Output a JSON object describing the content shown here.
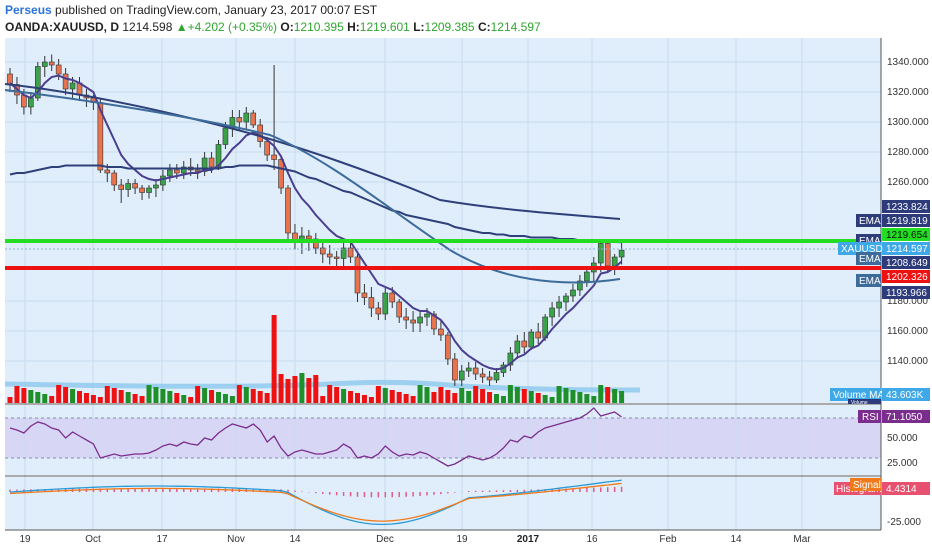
{
  "header": {
    "author": "Perseus",
    "published_text": "published on TradingView.com, January 23, 2017 00:07 EST",
    "symbol": "OANDA:XAUUSD, D",
    "last": "1214.598",
    "change": "▲+4.202 (+0.35%)",
    "o_label": "O:",
    "o_value": "1210.395",
    "h_label": "H:",
    "h_value": "1219.601",
    "l_label": "L:",
    "l_value": "1209.385",
    "c_label": "C:",
    "c_value": "1214.597"
  },
  "colors": {
    "up": "#3aa34a",
    "down": "#e8734f",
    "ema_short": "#4b3d8f",
    "ema_long": "#2f3f7a",
    "ema_mid": "#3d6b9a",
    "green_line": "#22dd22",
    "red_line": "#ee1111",
    "vol_up": "#1f8f2a",
    "vol_down": "#ee1111",
    "rsi_line": "#7b2d8e",
    "macd": "#2a9ad6",
    "signal": "#f07a1a",
    "hist": "#e05a8a"
  },
  "price_axis": {
    "ticks": [
      "1340.000",
      "1320.000",
      "1300.000",
      "1280.000",
      "1260.000",
      "1180.000",
      "1160.000",
      "1140.000"
    ]
  },
  "price_labels": [
    {
      "text": "1233.824",
      "style": "dark"
    },
    {
      "text": "1219.819",
      "style": "dark"
    },
    {
      "text": "1219.654",
      "style": "green"
    },
    {
      "text": "1214.597",
      "style": "sky"
    },
    {
      "text": "1208.649",
      "style": "dark"
    },
    {
      "text": "1202.326",
      "style": "red"
    },
    {
      "text": "1193.966",
      "style": "dark"
    }
  ],
  "tags": [
    {
      "text": "EMA",
      "style": "dark"
    },
    {
      "text": "EMA",
      "style": "dark"
    },
    {
      "text": "XAUUSD",
      "style": "sky"
    },
    {
      "text": "EMA",
      "style": "dark"
    },
    {
      "text": "EMA",
      "style": "dark"
    },
    {
      "text": "Volume MA",
      "style": "sky"
    },
    {
      "text": "Volume",
      "style": "dark"
    },
    {
      "text": "RSI",
      "style": "purple"
    },
    {
      "text": "Signal",
      "style": "orange"
    },
    {
      "text": "Histogram",
      "style": "pink"
    }
  ],
  "volume": {
    "ma_value": "43.603K"
  },
  "rsi": {
    "value": "71.1050",
    "ticks": [
      "50.000",
      "25.000"
    ]
  },
  "macd": {
    "value": "4.4314",
    "ticks": [
      "-25.000"
    ]
  },
  "x_axis": {
    "labels": [
      "19",
      "Oct",
      "17",
      "Nov",
      "14",
      "Dec",
      "19",
      "2017",
      "16",
      "Feb",
      "14",
      "Mar"
    ]
  },
  "chart_data": {
    "type": "candlestick",
    "title": "OANDA:XAUUSD, D",
    "ylim": [
      1122,
      1350
    ],
    "candles": [
      {
        "o": 1332,
        "h": 1336,
        "l": 1320,
        "c": 1325
      },
      {
        "o": 1325,
        "h": 1330,
        "l": 1312,
        "c": 1318
      },
      {
        "o": 1318,
        "h": 1322,
        "l": 1305,
        "c": 1310
      },
      {
        "o": 1310,
        "h": 1320,
        "l": 1305,
        "c": 1316
      },
      {
        "o": 1316,
        "h": 1340,
        "l": 1314,
        "c": 1337
      },
      {
        "o": 1337,
        "h": 1344,
        "l": 1330,
        "c": 1340
      },
      {
        "o": 1340,
        "h": 1345,
        "l": 1334,
        "c": 1338
      },
      {
        "o": 1338,
        "h": 1342,
        "l": 1328,
        "c": 1332
      },
      {
        "o": 1332,
        "h": 1336,
        "l": 1318,
        "c": 1322
      },
      {
        "o": 1322,
        "h": 1330,
        "l": 1316,
        "c": 1326
      },
      {
        "o": 1326,
        "h": 1330,
        "l": 1314,
        "c": 1318
      },
      {
        "o": 1318,
        "h": 1322,
        "l": 1310,
        "c": 1316
      },
      {
        "o": 1316,
        "h": 1318,
        "l": 1308,
        "c": 1313
      },
      {
        "o": 1313,
        "h": 1316,
        "l": 1266,
        "c": 1268
      },
      {
        "o": 1268,
        "h": 1272,
        "l": 1260,
        "c": 1266
      },
      {
        "o": 1266,
        "h": 1268,
        "l": 1254,
        "c": 1258
      },
      {
        "o": 1258,
        "h": 1262,
        "l": 1246,
        "c": 1255
      },
      {
        "o": 1255,
        "h": 1262,
        "l": 1250,
        "c": 1259
      },
      {
        "o": 1259,
        "h": 1262,
        "l": 1252,
        "c": 1256
      },
      {
        "o": 1256,
        "h": 1258,
        "l": 1248,
        "c": 1253
      },
      {
        "o": 1253,
        "h": 1258,
        "l": 1249,
        "c": 1256
      },
      {
        "o": 1256,
        "h": 1262,
        "l": 1250,
        "c": 1258
      },
      {
        "o": 1258,
        "h": 1268,
        "l": 1254,
        "c": 1264
      },
      {
        "o": 1264,
        "h": 1272,
        "l": 1260,
        "c": 1268
      },
      {
        "o": 1268,
        "h": 1272,
        "l": 1262,
        "c": 1266
      },
      {
        "o": 1266,
        "h": 1274,
        "l": 1262,
        "c": 1270
      },
      {
        "o": 1270,
        "h": 1276,
        "l": 1264,
        "c": 1268
      },
      {
        "o": 1268,
        "h": 1272,
        "l": 1262,
        "c": 1267
      },
      {
        "o": 1267,
        "h": 1280,
        "l": 1264,
        "c": 1276
      },
      {
        "o": 1276,
        "h": 1280,
        "l": 1266,
        "c": 1270
      },
      {
        "o": 1270,
        "h": 1288,
        "l": 1268,
        "c": 1285
      },
      {
        "o": 1285,
        "h": 1300,
        "l": 1282,
        "c": 1296
      },
      {
        "o": 1296,
        "h": 1308,
        "l": 1290,
        "c": 1303
      },
      {
        "o": 1303,
        "h": 1308,
        "l": 1294,
        "c": 1300
      },
      {
        "o": 1300,
        "h": 1310,
        "l": 1295,
        "c": 1306
      },
      {
        "o": 1306,
        "h": 1308,
        "l": 1296,
        "c": 1298
      },
      {
        "o": 1298,
        "h": 1302,
        "l": 1283,
        "c": 1287
      },
      {
        "o": 1287,
        "h": 1290,
        "l": 1274,
        "c": 1278
      },
      {
        "o": 1278,
        "h": 1338,
        "l": 1268,
        "c": 1275
      },
      {
        "o": 1275,
        "h": 1278,
        "l": 1252,
        "c": 1256
      },
      {
        "o": 1256,
        "h": 1258,
        "l": 1222,
        "c": 1226
      },
      {
        "o": 1226,
        "h": 1232,
        "l": 1215,
        "c": 1221
      },
      {
        "o": 1221,
        "h": 1230,
        "l": 1212,
        "c": 1224
      },
      {
        "o": 1224,
        "h": 1228,
        "l": 1214,
        "c": 1222
      },
      {
        "o": 1222,
        "h": 1226,
        "l": 1212,
        "c": 1216
      },
      {
        "o": 1216,
        "h": 1222,
        "l": 1206,
        "c": 1212
      },
      {
        "o": 1212,
        "h": 1218,
        "l": 1205,
        "c": 1210
      },
      {
        "o": 1210,
        "h": 1214,
        "l": 1204,
        "c": 1209
      },
      {
        "o": 1209,
        "h": 1220,
        "l": 1204,
        "c": 1216
      },
      {
        "o": 1216,
        "h": 1220,
        "l": 1206,
        "c": 1210
      },
      {
        "o": 1210,
        "h": 1212,
        "l": 1180,
        "c": 1186
      },
      {
        "o": 1186,
        "h": 1192,
        "l": 1178,
        "c": 1183
      },
      {
        "o": 1183,
        "h": 1190,
        "l": 1170,
        "c": 1176
      },
      {
        "o": 1176,
        "h": 1180,
        "l": 1168,
        "c": 1172
      },
      {
        "o": 1172,
        "h": 1190,
        "l": 1168,
        "c": 1186
      },
      {
        "o": 1186,
        "h": 1190,
        "l": 1176,
        "c": 1180
      },
      {
        "o": 1180,
        "h": 1182,
        "l": 1166,
        "c": 1170
      },
      {
        "o": 1170,
        "h": 1176,
        "l": 1162,
        "c": 1168
      },
      {
        "o": 1168,
        "h": 1174,
        "l": 1160,
        "c": 1166
      },
      {
        "o": 1166,
        "h": 1174,
        "l": 1160,
        "c": 1170
      },
      {
        "o": 1170,
        "h": 1176,
        "l": 1164,
        "c": 1172
      },
      {
        "o": 1172,
        "h": 1174,
        "l": 1158,
        "c": 1162
      },
      {
        "o": 1162,
        "h": 1168,
        "l": 1154,
        "c": 1158
      },
      {
        "o": 1158,
        "h": 1160,
        "l": 1138,
        "c": 1142
      },
      {
        "o": 1142,
        "h": 1146,
        "l": 1124,
        "c": 1128
      },
      {
        "o": 1128,
        "h": 1138,
        "l": 1124,
        "c": 1134
      },
      {
        "o": 1134,
        "h": 1140,
        "l": 1130,
        "c": 1136
      },
      {
        "o": 1136,
        "h": 1140,
        "l": 1128,
        "c": 1132
      },
      {
        "o": 1132,
        "h": 1136,
        "l": 1126,
        "c": 1130
      },
      {
        "o": 1130,
        "h": 1134,
        "l": 1124,
        "c": 1128
      },
      {
        "o": 1128,
        "h": 1136,
        "l": 1126,
        "c": 1133
      },
      {
        "o": 1133,
        "h": 1140,
        "l": 1130,
        "c": 1138
      },
      {
        "o": 1138,
        "h": 1150,
        "l": 1134,
        "c": 1146
      },
      {
        "o": 1146,
        "h": 1158,
        "l": 1142,
        "c": 1154
      },
      {
        "o": 1154,
        "h": 1160,
        "l": 1146,
        "c": 1150
      },
      {
        "o": 1150,
        "h": 1162,
        "l": 1148,
        "c": 1160
      },
      {
        "o": 1160,
        "h": 1166,
        "l": 1152,
        "c": 1156
      },
      {
        "o": 1156,
        "h": 1172,
        "l": 1154,
        "c": 1170
      },
      {
        "o": 1170,
        "h": 1180,
        "l": 1164,
        "c": 1176
      },
      {
        "o": 1176,
        "h": 1184,
        "l": 1170,
        "c": 1180
      },
      {
        "o": 1180,
        "h": 1186,
        "l": 1174,
        "c": 1184
      },
      {
        "o": 1184,
        "h": 1192,
        "l": 1180,
        "c": 1188
      },
      {
        "o": 1188,
        "h": 1198,
        "l": 1184,
        "c": 1194
      },
      {
        "o": 1194,
        "h": 1204,
        "l": 1190,
        "c": 1200
      },
      {
        "o": 1200,
        "h": 1210,
        "l": 1194,
        "c": 1206
      },
      {
        "o": 1206,
        "h": 1222,
        "l": 1200,
        "c": 1219
      },
      {
        "o": 1219,
        "h": 1222,
        "l": 1200,
        "c": 1204
      },
      {
        "o": 1204,
        "h": 1212,
        "l": 1198,
        "c": 1210
      },
      {
        "o": 1210,
        "h": 1220,
        "l": 1205,
        "c": 1214.6
      }
    ],
    "ema_short": [
      1326,
      1322,
      1318,
      1316,
      1320,
      1326,
      1330,
      1331,
      1329,
      1328,
      1326,
      1323,
      1320,
      1308,
      1298,
      1288,
      1278,
      1272,
      1268,
      1264,
      1262,
      1261,
      1262,
      1263,
      1264,
      1265,
      1266,
      1266,
      1268,
      1268,
      1271,
      1276,
      1282,
      1286,
      1291,
      1293,
      1291,
      1288,
      1284,
      1277,
      1266,
      1256,
      1249,
      1244,
      1238,
      1233,
      1228,
      1224,
      1222,
      1220,
      1213,
      1206,
      1199,
      1192,
      1190,
      1188,
      1184,
      1180,
      1176,
      1174,
      1174,
      1171,
      1168,
      1162,
      1154,
      1148,
      1144,
      1141,
      1138,
      1136,
      1135,
      1136,
      1139,
      1143,
      1145,
      1149,
      1151,
      1156,
      1162,
      1167,
      1172,
      1176,
      1181,
      1186,
      1191,
      1199,
      1200,
      1203,
      1207
    ],
    "ema_long": [
      1265,
      1266,
      1266,
      1267,
      1268,
      1269,
      1270,
      1270,
      1271,
      1271,
      1271,
      1271,
      1271,
      1271,
      1270,
      1270,
      1270,
      1269,
      1269,
      1269,
      1269,
      1269,
      1269,
      1269,
      1269,
      1269,
      1269,
      1269,
      1269,
      1269,
      1269,
      1270,
      1270,
      1271,
      1271,
      1271,
      1271,
      1271,
      1270,
      1269,
      1268,
      1267,
      1265,
      1263,
      1262,
      1260,
      1258,
      1256,
      1254,
      1253,
      1251,
      1249,
      1247,
      1245,
      1243,
      1241,
      1240,
      1238,
      1237,
      1236,
      1235,
      1234,
      1233,
      1232,
      1230,
      1229,
      1228,
      1227,
      1226,
      1226,
      1225,
      1225,
      1224,
      1224,
      1224,
      1223,
      1223,
      1223,
      1223,
      1222,
      1222,
      1222,
      1221,
      1221,
      1221,
      1221,
      1220,
      1220,
      1219.8
    ],
    "xlabels": [
      "19",
      "Oct",
      "17",
      "Nov",
      "14",
      "Dec",
      "19",
      "2017",
      "16",
      "Feb",
      "14",
      "Mar"
    ]
  }
}
